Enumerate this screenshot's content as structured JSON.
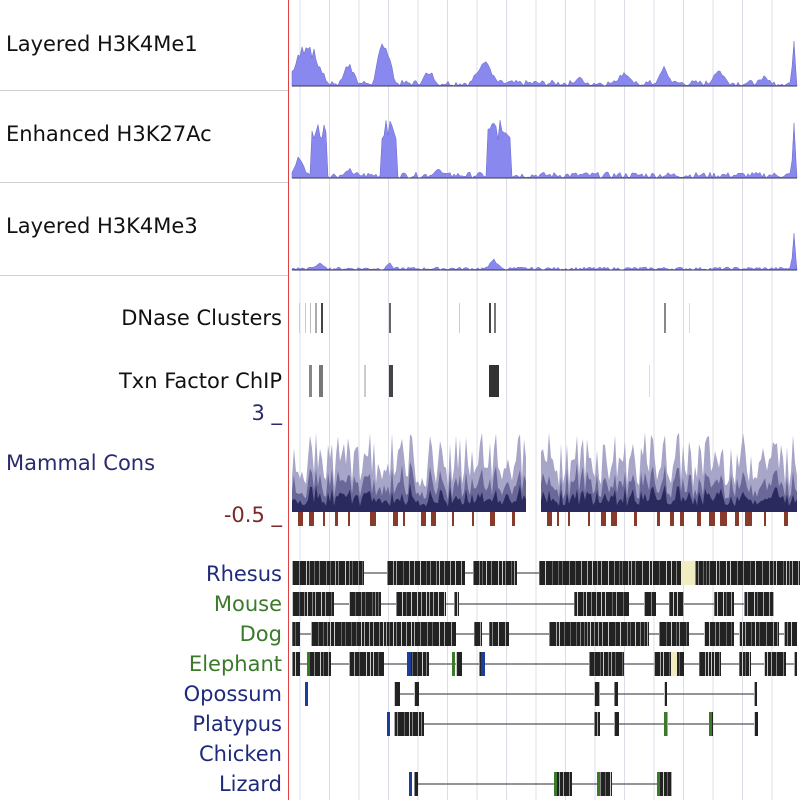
{
  "colors": {
    "signal": "#8888ee",
    "signal_dark": "#6666cc",
    "cluster": "#555555",
    "cons_light": "#a7a5c8",
    "cons_mid": "#6a6899",
    "cons_dark": "#2b2a5e",
    "cons_neg": "#8a3a2a",
    "species_blue": "#1f2a7a",
    "species_green": "#3a7a2a",
    "label_text": "#111111",
    "gridline": "#dddde8",
    "block": "#111111",
    "highlight": "#f0eec0"
  },
  "tracks": {
    "h3k4me1": {
      "label": "Layered H3K4Me1"
    },
    "h3k27ac": {
      "label": "Enhanced H3K27Ac"
    },
    "h3k4me3": {
      "label": "Layered H3K4Me3"
    },
    "dnase": {
      "label": "DNase Clusters"
    },
    "txn": {
      "label": "Txn Factor ChIP"
    },
    "cons": {
      "label": "Mammal Cons",
      "ymax": "3 _",
      "ymin": "-0.5 _"
    }
  },
  "species": [
    {
      "name": "Rhesus",
      "color": "species_blue"
    },
    {
      "name": "Mouse",
      "color": "species_green"
    },
    {
      "name": "Dog",
      "color": "species_green"
    },
    {
      "name": "Elephant",
      "color": "species_green"
    },
    {
      "name": "Opossum",
      "color": "species_blue"
    },
    {
      "name": "Platypus",
      "color": "species_blue"
    },
    {
      "name": "Chicken",
      "color": "species_blue"
    },
    {
      "name": "Lizard",
      "color": "species_blue"
    }
  ]
}
